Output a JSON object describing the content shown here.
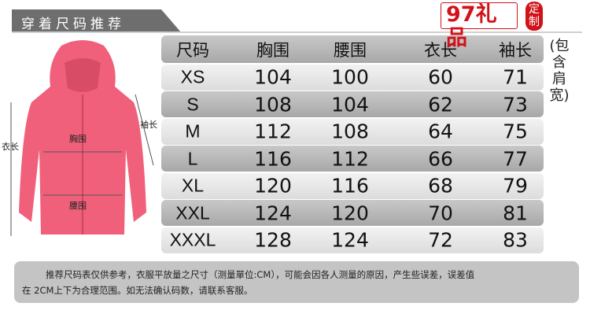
{
  "title": "穿着尺码推荐",
  "table": {
    "headers": [
      "尺码",
      "胸围",
      "腰围",
      "衣长",
      "袖长"
    ],
    "rows": [
      [
        "XS",
        "104",
        "100",
        "60",
        "71"
      ],
      [
        "S",
        "108",
        "104",
        "62",
        "73"
      ],
      [
        "M",
        "112",
        "108",
        "64",
        "75"
      ],
      [
        "L",
        "116",
        "112",
        "66",
        "77"
      ],
      [
        "XL",
        "120",
        "116",
        "68",
        "79"
      ],
      [
        "XXL",
        "124",
        "120",
        "70",
        "81"
      ],
      [
        "XXXL",
        "128",
        "124",
        "72",
        "83"
      ]
    ],
    "sleeve_note": "(包含肩宽)"
  },
  "diagram": {
    "length_label": "衣长",
    "chest_label": "胸围",
    "waist_label": "腰围",
    "sleeve_label": "袖长",
    "jacket_color": "#f0607a"
  },
  "note": {
    "line1": "推荐尺码表仅供参考，衣服平放量之尺寸（测量單位:CM），可能会因各人测量的原因，产生些误差，误差值",
    "line2": "在 2CM上下为合理范围。如无法确认码数，请联系客服。"
  },
  "watermark": {
    "logo": "97礼品",
    "seal": "定制",
    "color": "#d2121a"
  }
}
